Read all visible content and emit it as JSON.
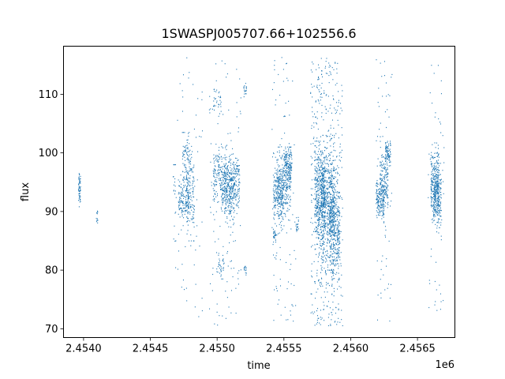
{
  "chart_data": {
    "type": "scatter",
    "title": "1SWASPJ005707.66+102556.6",
    "xlabel": "time",
    "ylabel": "flux",
    "x_offset_label": "1e6",
    "x_axis_multiplier": 1000000,
    "xlim": [
      2.45385,
      2.45678
    ],
    "ylim": [
      68.5,
      118.2
    ],
    "xticks": [
      2.454,
      2.4545,
      2.455,
      2.4555,
      2.456,
      2.4565
    ],
    "xtick_labels": [
      "2.4540",
      "2.4545",
      "2.4550",
      "2.4555",
      "2.4560",
      "2.4565"
    ],
    "yticks": [
      70,
      80,
      90,
      100,
      110
    ],
    "ytick_labels": [
      "70",
      "80",
      "90",
      "100",
      "110"
    ],
    "grid": false,
    "legend": "none",
    "colors": {
      "points": "#1f77b4"
    },
    "series": [
      {
        "clusters": [
          {
            "x": 2.45397,
            "xw": 8e-06,
            "ymean": 94.2,
            "ysd": 1.4,
            "n": 60,
            "ymin": 90.8,
            "ymax": 97.4
          },
          {
            "x": 2.4541,
            "xw": 8e-06,
            "ymean": 89.0,
            "ysd": 0.6,
            "n": 12,
            "ymin": 87.8,
            "ymax": 90.3
          },
          {
            "x": 2.45468,
            "xw": 1e-05,
            "ymean": 94.0,
            "ysd": 6.0,
            "n": 20,
            "ymin": 76.0,
            "ymax": 98.0
          },
          {
            "x": 2.45475,
            "xw": 4e-05,
            "ymean": 92.0,
            "ysd": 1.6,
            "n": 140,
            "ymin": 86.0,
            "ymax": 98.0
          },
          {
            "x": 2.45477,
            "xw": 3e-05,
            "ymean": 98.0,
            "ysd": 2.8,
            "n": 90,
            "ymin": 90.0,
            "ymax": 103.5
          },
          {
            "x": 2.4548,
            "xw": 3e-05,
            "ymean": 92.5,
            "ysd": 3.5,
            "n": 120,
            "ymin": 85.0,
            "ymax": 101.0
          },
          {
            "x": 2.45479,
            "xw": 0.0001,
            "ymean": 90.0,
            "ysd": 10.0,
            "n": 60,
            "ymin": 72.0,
            "ymax": 118.0
          },
          {
            "x": 2.455,
            "xw": 3e-05,
            "ymean": 108.5,
            "ysd": 1.5,
            "n": 30,
            "ymin": 105.0,
            "ymax": 112.0
          },
          {
            "x": 2.45502,
            "xw": 3e-05,
            "ymean": 80.5,
            "ysd": 1.0,
            "n": 30,
            "ymin": 78.5,
            "ymax": 83.0
          },
          {
            "x": 2.45503,
            "xw": 6e-05,
            "ymean": 96.0,
            "ysd": 2.2,
            "n": 220,
            "ymin": 88.0,
            "ymax": 101.5
          },
          {
            "x": 2.45508,
            "xw": 5e-05,
            "ymean": 93.0,
            "ysd": 2.5,
            "n": 200,
            "ymin": 86.0,
            "ymax": 100.0
          },
          {
            "x": 2.45513,
            "xw": 4e-05,
            "ymean": 94.5,
            "ysd": 2.4,
            "n": 180,
            "ymin": 88.0,
            "ymax": 100.0
          },
          {
            "x": 2.45506,
            "xw": 0.00012,
            "ymean": 92.0,
            "ysd": 11.0,
            "n": 110,
            "ymin": 70.5,
            "ymax": 116.5
          },
          {
            "x": 2.45521,
            "xw": 1e-05,
            "ymean": 110.8,
            "ysd": 0.6,
            "n": 20,
            "ymin": 109.5,
            "ymax": 112.0
          },
          {
            "x": 2.45521,
            "xw": 1e-05,
            "ymean": 80.2,
            "ysd": 0.6,
            "n": 15,
            "ymin": 79.0,
            "ymax": 81.5
          },
          {
            "x": 2.45543,
            "xw": 1e-05,
            "ymean": 86.0,
            "ysd": 0.6,
            "n": 25,
            "ymin": 84.8,
            "ymax": 87.2
          },
          {
            "x": 2.45546,
            "xw": 4e-05,
            "ymean": 93.0,
            "ysd": 2.4,
            "n": 220,
            "ymin": 86.0,
            "ymax": 100.0
          },
          {
            "x": 2.4555,
            "xw": 5e-05,
            "ymean": 95.0,
            "ysd": 2.6,
            "n": 220,
            "ymin": 87.0,
            "ymax": 101.0
          },
          {
            "x": 2.45553,
            "xw": 3e-05,
            "ymean": 98.0,
            "ysd": 1.6,
            "n": 150,
            "ymin": 94.0,
            "ymax": 101.0
          },
          {
            "x": 2.4555,
            "xw": 9e-05,
            "ymean": 92.0,
            "ysd": 12.0,
            "n": 90,
            "ymin": 71.0,
            "ymax": 116.5
          },
          {
            "x": 2.4556,
            "xw": 1e-05,
            "ymean": 87.5,
            "ysd": 0.7,
            "n": 20,
            "ymin": 86.0,
            "ymax": 89.0
          },
          {
            "x": 2.45577,
            "xw": 4e-05,
            "ymean": 93.0,
            "ysd": 4.0,
            "n": 420,
            "ymin": 82.0,
            "ymax": 102.0
          },
          {
            "x": 2.45583,
            "xw": 5e-05,
            "ymean": 91.0,
            "ysd": 4.6,
            "n": 460,
            "ymin": 80.0,
            "ymax": 103.0
          },
          {
            "x": 2.45588,
            "xw": 4e-05,
            "ymean": 88.0,
            "ysd": 4.2,
            "n": 360,
            "ymin": 78.0,
            "ymax": 100.0
          },
          {
            "x": 2.45582,
            "xw": 0.00012,
            "ymean": 93.0,
            "ysd": 13.0,
            "n": 500,
            "ymin": 70.5,
            "ymax": 116.5
          },
          {
            "x": 2.45622,
            "xw": 3e-05,
            "ymean": 92.0,
            "ysd": 1.4,
            "n": 160,
            "ymin": 88.0,
            "ymax": 96.0
          },
          {
            "x": 2.45625,
            "xw": 3e-05,
            "ymean": 95.0,
            "ysd": 2.8,
            "n": 170,
            "ymin": 86.0,
            "ymax": 103.5
          },
          {
            "x": 2.45628,
            "xw": 2e-05,
            "ymean": 100.0,
            "ysd": 1.0,
            "n": 80,
            "ymin": 97.5,
            "ymax": 102.0
          },
          {
            "x": 2.45625,
            "xw": 6e-05,
            "ymean": 92.0,
            "ysd": 11.0,
            "n": 60,
            "ymin": 70.5,
            "ymax": 116.0
          },
          {
            "x": 2.45663,
            "xw": 3e-05,
            "ymean": 94.5,
            "ysd": 2.8,
            "n": 240,
            "ymin": 85.0,
            "ymax": 103.0
          },
          {
            "x": 2.45665,
            "xw": 3e-05,
            "ymean": 92.5,
            "ysd": 2.4,
            "n": 200,
            "ymin": 86.0,
            "ymax": 100.0
          },
          {
            "x": 2.45664,
            "xw": 6e-05,
            "ymean": 93.0,
            "ysd": 10.0,
            "n": 55,
            "ymin": 71.5,
            "ymax": 115.5
          }
        ]
      }
    ]
  }
}
